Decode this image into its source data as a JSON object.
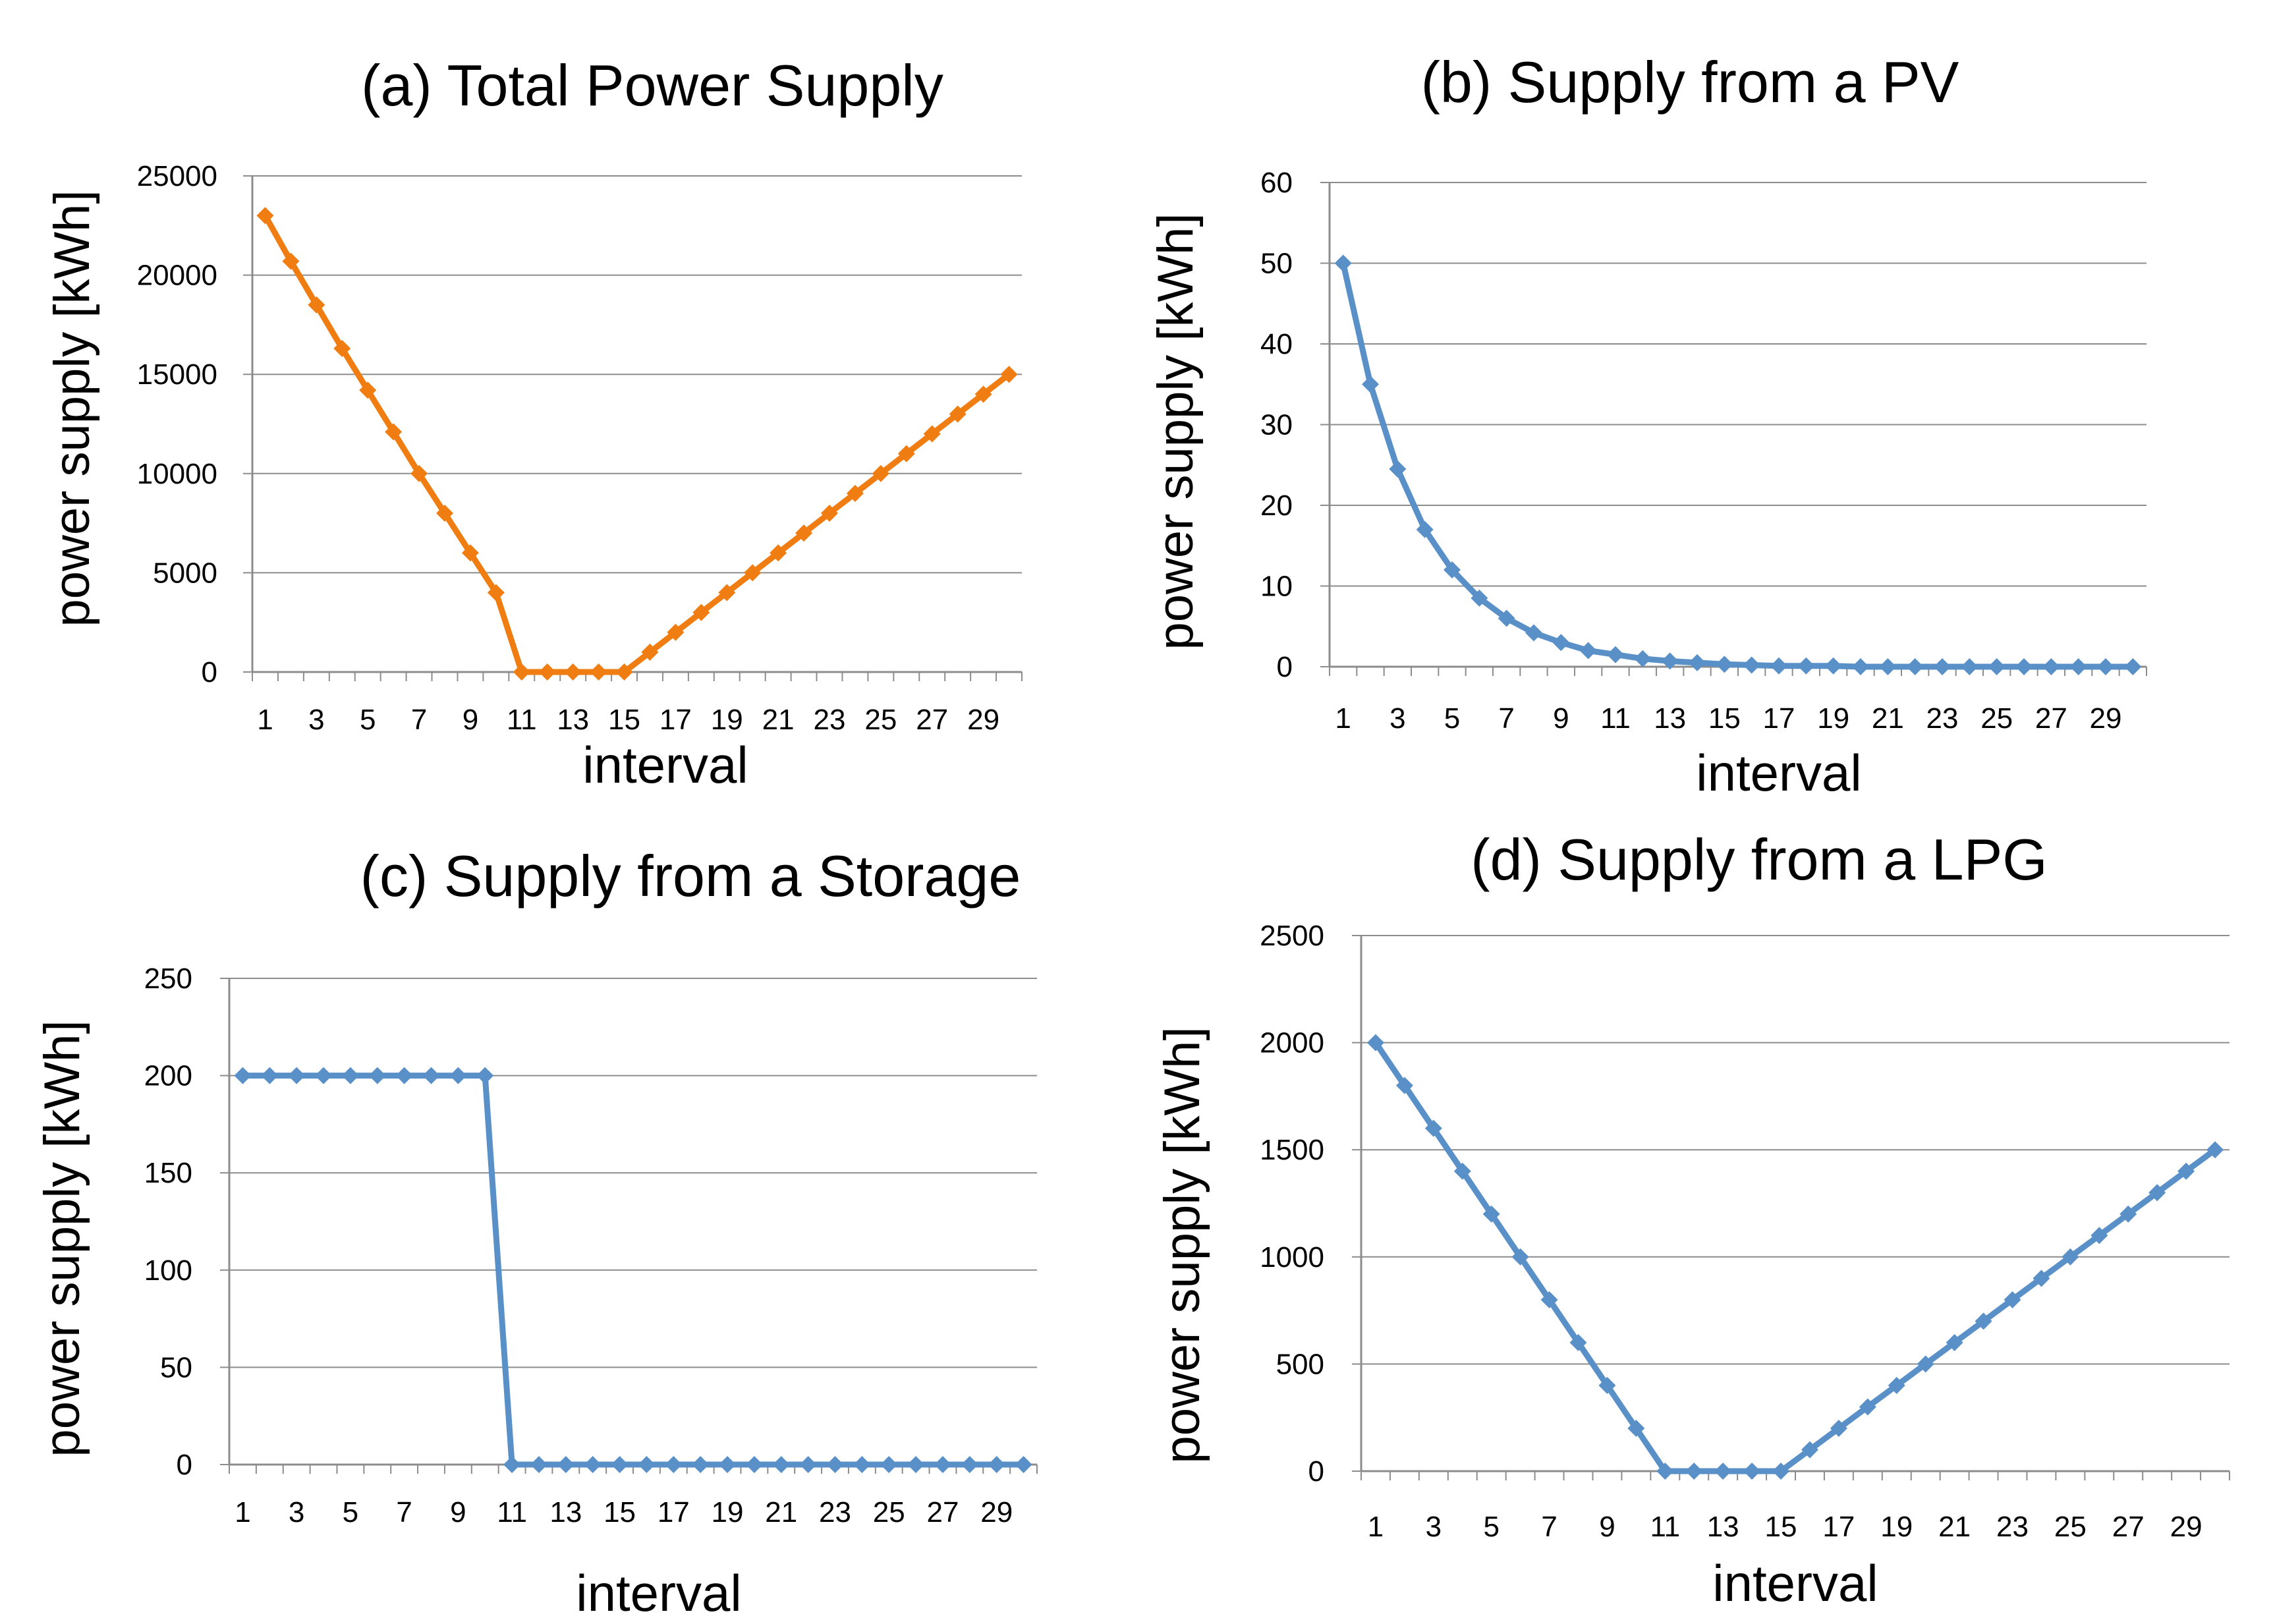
{
  "colors": {
    "orange": "#f07d12",
    "blue": "#5a90c8",
    "grid": "#8c8c8c",
    "axis": "#8c8c8c"
  },
  "chart_data": [
    {
      "id": "a",
      "type": "line",
      "title": "(a) Total Power Supply",
      "xlabel": "interval",
      "ylabel": "power supply [kWh]",
      "ylim": [
        0,
        25000
      ],
      "yticks": [
        0,
        5000,
        10000,
        15000,
        20000,
        25000
      ],
      "x": [
        1,
        2,
        3,
        4,
        5,
        6,
        7,
        8,
        9,
        10,
        11,
        12,
        13,
        14,
        15,
        16,
        17,
        18,
        19,
        20,
        21,
        22,
        23,
        24,
        25,
        26,
        27,
        28,
        29,
        30
      ],
      "xtick_labels": [
        "1",
        "3",
        "5",
        "7",
        "9",
        "11",
        "13",
        "15",
        "17",
        "19",
        "21",
        "23",
        "25",
        "27",
        "29"
      ],
      "series": [
        {
          "name": "Total",
          "color": "#f07d12",
          "values": [
            23000,
            20700,
            18500,
            16300,
            14200,
            12100,
            10000,
            8000,
            6000,
            4000,
            0,
            0,
            0,
            0,
            0,
            1000,
            2000,
            3000,
            4000,
            5000,
            6000,
            7000,
            8000,
            9000,
            10000,
            11000,
            12000,
            13000,
            14000,
            15000
          ]
        }
      ]
    },
    {
      "id": "b",
      "type": "line",
      "title": "(b) Supply from a PV",
      "xlabel": "interval",
      "ylabel": "power supply [kWh]",
      "ylim": [
        0,
        60
      ],
      "yticks": [
        0,
        10,
        20,
        30,
        40,
        50,
        60
      ],
      "x": [
        1,
        2,
        3,
        4,
        5,
        6,
        7,
        8,
        9,
        10,
        11,
        12,
        13,
        14,
        15,
        16,
        17,
        18,
        19,
        20,
        21,
        22,
        23,
        24,
        25,
        26,
        27,
        28,
        29,
        30
      ],
      "xtick_labels": [
        "1",
        "3",
        "5",
        "7",
        "9",
        "11",
        "13",
        "15",
        "17",
        "19",
        "21",
        "23",
        "25",
        "27",
        "29"
      ],
      "series": [
        {
          "name": "PV",
          "color": "#5a90c8",
          "values": [
            50,
            35,
            24.5,
            17,
            12,
            8.5,
            6,
            4.2,
            3,
            2,
            1.5,
            1,
            0.7,
            0.5,
            0.3,
            0.2,
            0.1,
            0.1,
            0.1,
            0,
            0,
            0,
            0,
            0,
            0,
            0,
            0,
            0,
            0,
            0
          ]
        }
      ]
    },
    {
      "id": "c",
      "type": "line",
      "title": "(c) Supply from a Storage",
      "xlabel": "interval",
      "ylabel": "power supply [kWh]",
      "ylim": [
        0,
        250
      ],
      "yticks": [
        0,
        50,
        100,
        150,
        200,
        250
      ],
      "x": [
        1,
        2,
        3,
        4,
        5,
        6,
        7,
        8,
        9,
        10,
        11,
        12,
        13,
        14,
        15,
        16,
        17,
        18,
        19,
        20,
        21,
        22,
        23,
        24,
        25,
        26,
        27,
        28,
        29,
        30
      ],
      "xtick_labels": [
        "1",
        "3",
        "5",
        "7",
        "9",
        "11",
        "13",
        "15",
        "17",
        "19",
        "21",
        "23",
        "25",
        "27",
        "29"
      ],
      "series": [
        {
          "name": "Storage",
          "color": "#5a90c8",
          "values": [
            200,
            200,
            200,
            200,
            200,
            200,
            200,
            200,
            200,
            200,
            0,
            0,
            0,
            0,
            0,
            0,
            0,
            0,
            0,
            0,
            0,
            0,
            0,
            0,
            0,
            0,
            0,
            0,
            0,
            0
          ]
        }
      ]
    },
    {
      "id": "d",
      "type": "line",
      "title": "(d) Supply from a LPG",
      "xlabel": "interval",
      "ylabel": "power supply [kWh]",
      "ylim": [
        0,
        2500
      ],
      "yticks": [
        0,
        500,
        1000,
        1500,
        2000,
        2500
      ],
      "x": [
        1,
        2,
        3,
        4,
        5,
        6,
        7,
        8,
        9,
        10,
        11,
        12,
        13,
        14,
        15,
        16,
        17,
        18,
        19,
        20,
        21,
        22,
        23,
        24,
        25,
        26,
        27,
        28,
        29,
        30
      ],
      "xtick_labels": [
        "1",
        "3",
        "5",
        "7",
        "9",
        "11",
        "13",
        "15",
        "17",
        "19",
        "21",
        "23",
        "25",
        "27",
        "29"
      ],
      "series": [
        {
          "name": "LPG",
          "color": "#5a90c8",
          "values": [
            2000,
            1800,
            1600,
            1400,
            1200,
            1000,
            800,
            600,
            400,
            200,
            0,
            0,
            0,
            0,
            0,
            100,
            200,
            300,
            400,
            500,
            600,
            700,
            800,
            900,
            1000,
            1100,
            1200,
            1300,
            1400,
            1500
          ]
        }
      ]
    }
  ]
}
